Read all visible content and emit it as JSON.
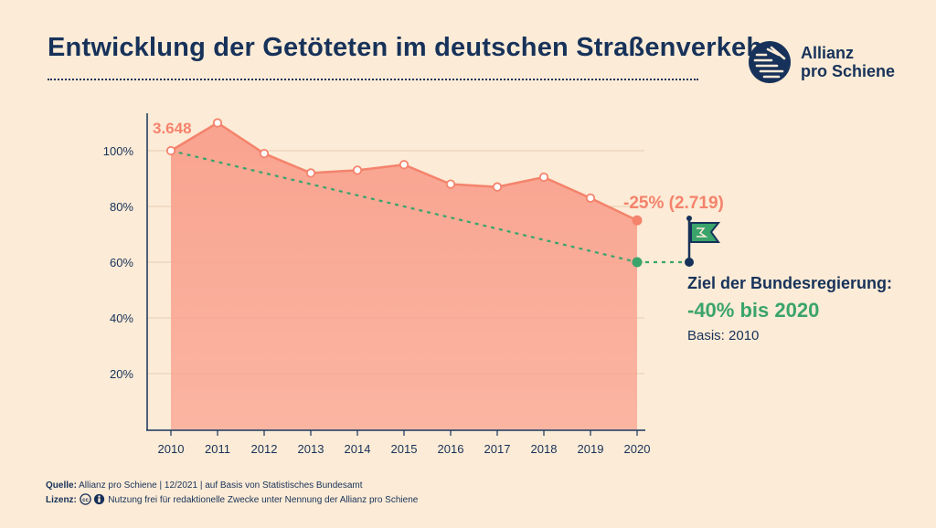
{
  "title": "Entwicklung der Getöteten im deutschen Straßenverkehr",
  "logo": {
    "line1": "Allianz",
    "line2": "pro Schiene"
  },
  "colors": {
    "navy": "#17325a",
    "salmon": "#f4836c",
    "area": "#f9a390",
    "green": "#3aa46b",
    "background": "#fcebd6"
  },
  "chart_data": {
    "type": "area",
    "x": [
      "2010",
      "2011",
      "2012",
      "2013",
      "2014",
      "2015",
      "2016",
      "2017",
      "2018",
      "2019",
      "2020"
    ],
    "series": [
      {
        "values": [
          100,
          110,
          99,
          92,
          93,
          95,
          88,
          87,
          90.5,
          83,
          75
        ]
      }
    ],
    "target_line": {
      "x_start": "2010",
      "y_start": 100,
      "x_end": "2020",
      "y_end": 60
    },
    "yticks": [
      20,
      40,
      60,
      80,
      100
    ],
    "ytick_labels": [
      "20%",
      "40%",
      "60%",
      "80%",
      "100%"
    ],
    "ylim": [
      0,
      114
    ],
    "grid": true,
    "start_label": "3.648",
    "end_label": "-25% (2.719)"
  },
  "goal": {
    "title": "Ziel der Bundesregierung:",
    "value": "-40% bis 2020",
    "basis": "Basis: 2010"
  },
  "footer": {
    "source_label": "Quelle:",
    "source_text": "Allianz pro Schiene | 12/2021 | auf Basis von Statistisches Bundesamt",
    "license_label": "Lizenz:",
    "license_text": "Nutzung frei für redaktionelle Zwecke unter Nennung der Allianz pro Schiene"
  }
}
